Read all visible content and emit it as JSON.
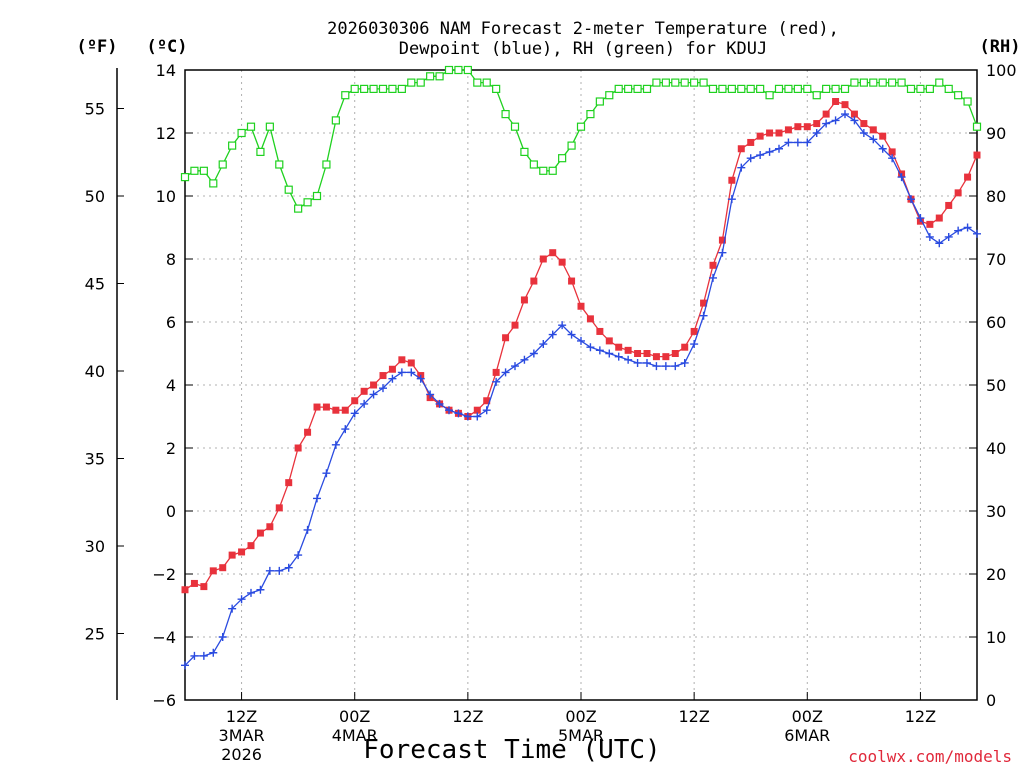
{
  "chart_data": {
    "type": "line",
    "title_line1": "2026030306 NAM Forecast 2-meter Temperature (red),",
    "title_line2": "Dewpoint (blue), RH (green) for KDUJ",
    "unit_f": "(ºF)",
    "unit_c": "(ºC)",
    "unit_rh": "(RH)",
    "xlabel": "Forecast Time (UTC)",
    "credit": "coolwx.com/models",
    "ylim_c": [
      -6,
      14
    ],
    "ylim_rh": [
      0,
      100
    ],
    "xlim_hours": [
      0,
      84
    ],
    "x_ticks": [
      {
        "hour": 6,
        "lines": [
          "12Z",
          "3MAR",
          "2026"
        ]
      },
      {
        "hour": 18,
        "lines": [
          "00Z",
          "4MAR"
        ]
      },
      {
        "hour": 30,
        "lines": [
          "12Z"
        ]
      },
      {
        "hour": 42,
        "lines": [
          "00Z",
          "5MAR"
        ]
      },
      {
        "hour": 54,
        "lines": [
          "12Z"
        ]
      },
      {
        "hour": 66,
        "lines": [
          "00Z",
          "6MAR"
        ]
      },
      {
        "hour": 78,
        "lines": [
          "12Z"
        ]
      }
    ],
    "c_ticks": [
      -6,
      -4,
      -2,
      0,
      2,
      4,
      6,
      8,
      10,
      12,
      14
    ],
    "f_ticks": [
      25,
      30,
      35,
      40,
      45,
      50,
      55
    ],
    "rh_ticks": [
      0,
      10,
      20,
      30,
      40,
      50,
      60,
      70,
      80,
      90,
      100
    ],
    "x_hours": [
      0,
      1,
      2,
      3,
      4,
      5,
      6,
      7,
      8,
      9,
      10,
      11,
      12,
      13,
      14,
      15,
      16,
      17,
      18,
      19,
      20,
      21,
      22,
      23,
      24,
      25,
      26,
      27,
      28,
      29,
      30,
      31,
      32,
      33,
      34,
      35,
      36,
      37,
      38,
      39,
      40,
      41,
      42,
      43,
      44,
      45,
      46,
      47,
      48,
      49,
      50,
      51,
      52,
      53,
      54,
      55,
      56,
      57,
      58,
      59,
      60,
      61,
      62,
      63,
      64,
      65,
      66,
      67,
      68,
      69,
      70,
      71,
      72,
      73,
      74,
      75,
      76,
      77,
      78,
      79,
      80,
      81,
      82,
      83,
      84
    ],
    "series": [
      {
        "name": "Temperature",
        "color": "#e8323c",
        "marker": "square-filled",
        "values": [
          -2.5,
          -2.3,
          -2.4,
          -1.9,
          -1.8,
          -1.4,
          -1.3,
          -1.1,
          -0.7,
          -0.5,
          0.1,
          0.9,
          2.0,
          2.5,
          3.3,
          3.3,
          3.2,
          3.2,
          3.5,
          3.8,
          4.0,
          4.3,
          4.5,
          4.8,
          4.7,
          4.3,
          3.6,
          3.4,
          3.2,
          3.1,
          3.0,
          3.2,
          3.5,
          4.4,
          5.5,
          5.9,
          6.7,
          7.3,
          8.0,
          8.2,
          7.9,
          7.3,
          6.5,
          6.1,
          5.7,
          5.4,
          5.2,
          5.1,
          5.0,
          5.0,
          4.9,
          4.9,
          5.0,
          5.2,
          5.7,
          6.6,
          7.8,
          8.6,
          10.5,
          11.5,
          11.7,
          11.9,
          12.0,
          12.0,
          12.1,
          12.2,
          12.2,
          12.3,
          12.6,
          13.0,
          12.9,
          12.6,
          12.3,
          12.1,
          11.9,
          11.4,
          10.7,
          9.9,
          9.2,
          9.1,
          9.3,
          9.7,
          10.1,
          10.6,
          11.3
        ]
      },
      {
        "name": "Dewpoint",
        "color": "#2a4be0",
        "marker": "plus",
        "values": [
          -4.9,
          -4.6,
          -4.6,
          -4.5,
          -4.0,
          -3.1,
          -2.8,
          -2.6,
          -2.5,
          -1.9,
          -1.9,
          -1.8,
          -1.4,
          -0.6,
          0.4,
          1.2,
          2.1,
          2.6,
          3.1,
          3.4,
          3.7,
          3.9,
          4.2,
          4.4,
          4.4,
          4.2,
          3.7,
          3.4,
          3.2,
          3.1,
          3.0,
          3.0,
          3.2,
          4.1,
          4.4,
          4.6,
          4.8,
          5.0,
          5.3,
          5.6,
          5.9,
          5.6,
          5.4,
          5.2,
          5.1,
          5.0,
          4.9,
          4.8,
          4.7,
          4.7,
          4.6,
          4.6,
          4.6,
          4.7,
          5.3,
          6.2,
          7.4,
          8.2,
          9.9,
          10.9,
          11.2,
          11.3,
          11.4,
          11.5,
          11.7,
          11.7,
          11.7,
          12.0,
          12.3,
          12.4,
          12.6,
          12.4,
          12.0,
          11.8,
          11.5,
          11.2,
          10.6,
          9.9,
          9.3,
          8.7,
          8.5,
          8.7,
          8.9,
          9.0,
          8.8
        ]
      },
      {
        "name": "RH",
        "color": "#1fd11f",
        "marker": "square-open",
        "values": [
          83,
          84,
          84,
          82,
          85,
          88,
          90,
          91,
          87,
          91,
          85,
          81,
          78,
          79,
          80,
          85,
          92,
          96,
          97,
          97,
          97,
          97,
          97,
          97,
          98,
          98,
          99,
          99,
          100,
          100,
          100,
          98,
          98,
          97,
          93,
          91,
          87,
          85,
          84,
          84,
          86,
          88,
          91,
          93,
          95,
          96,
          97,
          97,
          97,
          97,
          98,
          98,
          98,
          98,
          98,
          98,
          97,
          97,
          97,
          97,
          97,
          97,
          96,
          97,
          97,
          97,
          97,
          96,
          97,
          97,
          97,
          98,
          98,
          98,
          98,
          98,
          98,
          97,
          97,
          97,
          98,
          97,
          96,
          95,
          91
        ]
      }
    ]
  }
}
